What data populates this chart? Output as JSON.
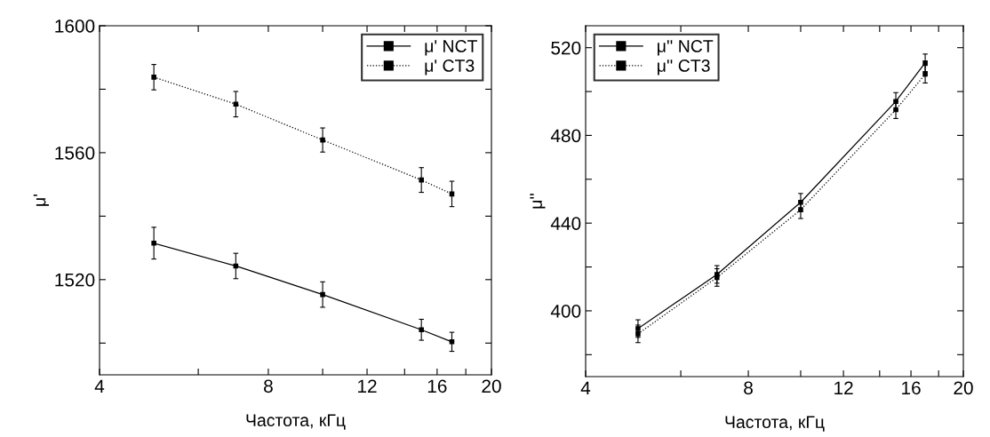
{
  "chart_data": [
    {
      "type": "line",
      "xlabel": "Частота, кГц",
      "ylabel": "μ'",
      "log": "x",
      "xlim": [
        4,
        20
      ],
      "xticks": [
        4,
        {
          "value": 6,
          "label": null
        },
        8,
        {
          "value": 10,
          "label": null
        },
        12,
        {
          "value": 14,
          "label": null
        },
        16,
        {
          "value": 18,
          "label": null
        },
        20
      ],
      "ylim": [
        1490,
        1600
      ],
      "yticks": [
        {
          "value": 1500,
          "label": null
        },
        1520,
        {
          "value": 1540,
          "label": null
        },
        1560,
        {
          "value": 1580,
          "label": null
        },
        1600
      ],
      "x": [
        5,
        7,
        10,
        15,
        17
      ],
      "marker": "square",
      "legend": "top right",
      "grid": false,
      "series": [
        {
          "name": "μ' NCT",
          "color": "#000000",
          "line_style": "solid",
          "values": [
            1531.5,
            1524.3,
            1515.3,
            1504.2,
            1500.4
          ],
          "errors": [
            5,
            4,
            4,
            3.3,
            3
          ]
        },
        {
          "name": "μ' CT3",
          "color": "#000000",
          "line_style": "dotted",
          "values": [
            1583.8,
            1575.3,
            1564,
            1551.4,
            1547
          ],
          "errors": [
            4,
            4,
            3.8,
            3.9,
            4
          ]
        }
      ]
    },
    {
      "type": "line",
      "xlabel": "Частота, кГц",
      "ylabel": "μ''",
      "log": "x",
      "xlim": [
        4,
        20
      ],
      "xticks": [
        4,
        {
          "value": 6,
          "label": null
        },
        8,
        {
          "value": 10,
          "label": null
        },
        12,
        {
          "value": 14,
          "label": null
        },
        16,
        {
          "value": 18,
          "label": null
        },
        20
      ],
      "ylim": [
        370,
        530
      ],
      "yticks": [
        {
          "value": 380,
          "label": null
        },
        400,
        {
          "value": 420,
          "label": null
        },
        440,
        {
          "value": 460,
          "label": null
        },
        480,
        {
          "value": 500,
          "label": null
        },
        520
      ],
      "x": [
        5,
        7,
        10,
        15,
        17
      ],
      "marker": "square",
      "legend": "top left",
      "grid": false,
      "series": [
        {
          "name": "μ'' NCT",
          "color": "#000000",
          "line_style": "solid",
          "values": [
            391.9,
            416.6,
            449.5,
            495.5,
            513.1
          ],
          "errors": [
            4,
            4,
            4,
            4,
            4
          ]
        },
        {
          "name": "μ'' CT3",
          "color": "#000000",
          "line_style": "dotted",
          "values": [
            389.5,
            415.2,
            446.1,
            491.7,
            507.9
          ],
          "errors": [
            4,
            4,
            4,
            4,
            4
          ]
        }
      ]
    }
  ]
}
